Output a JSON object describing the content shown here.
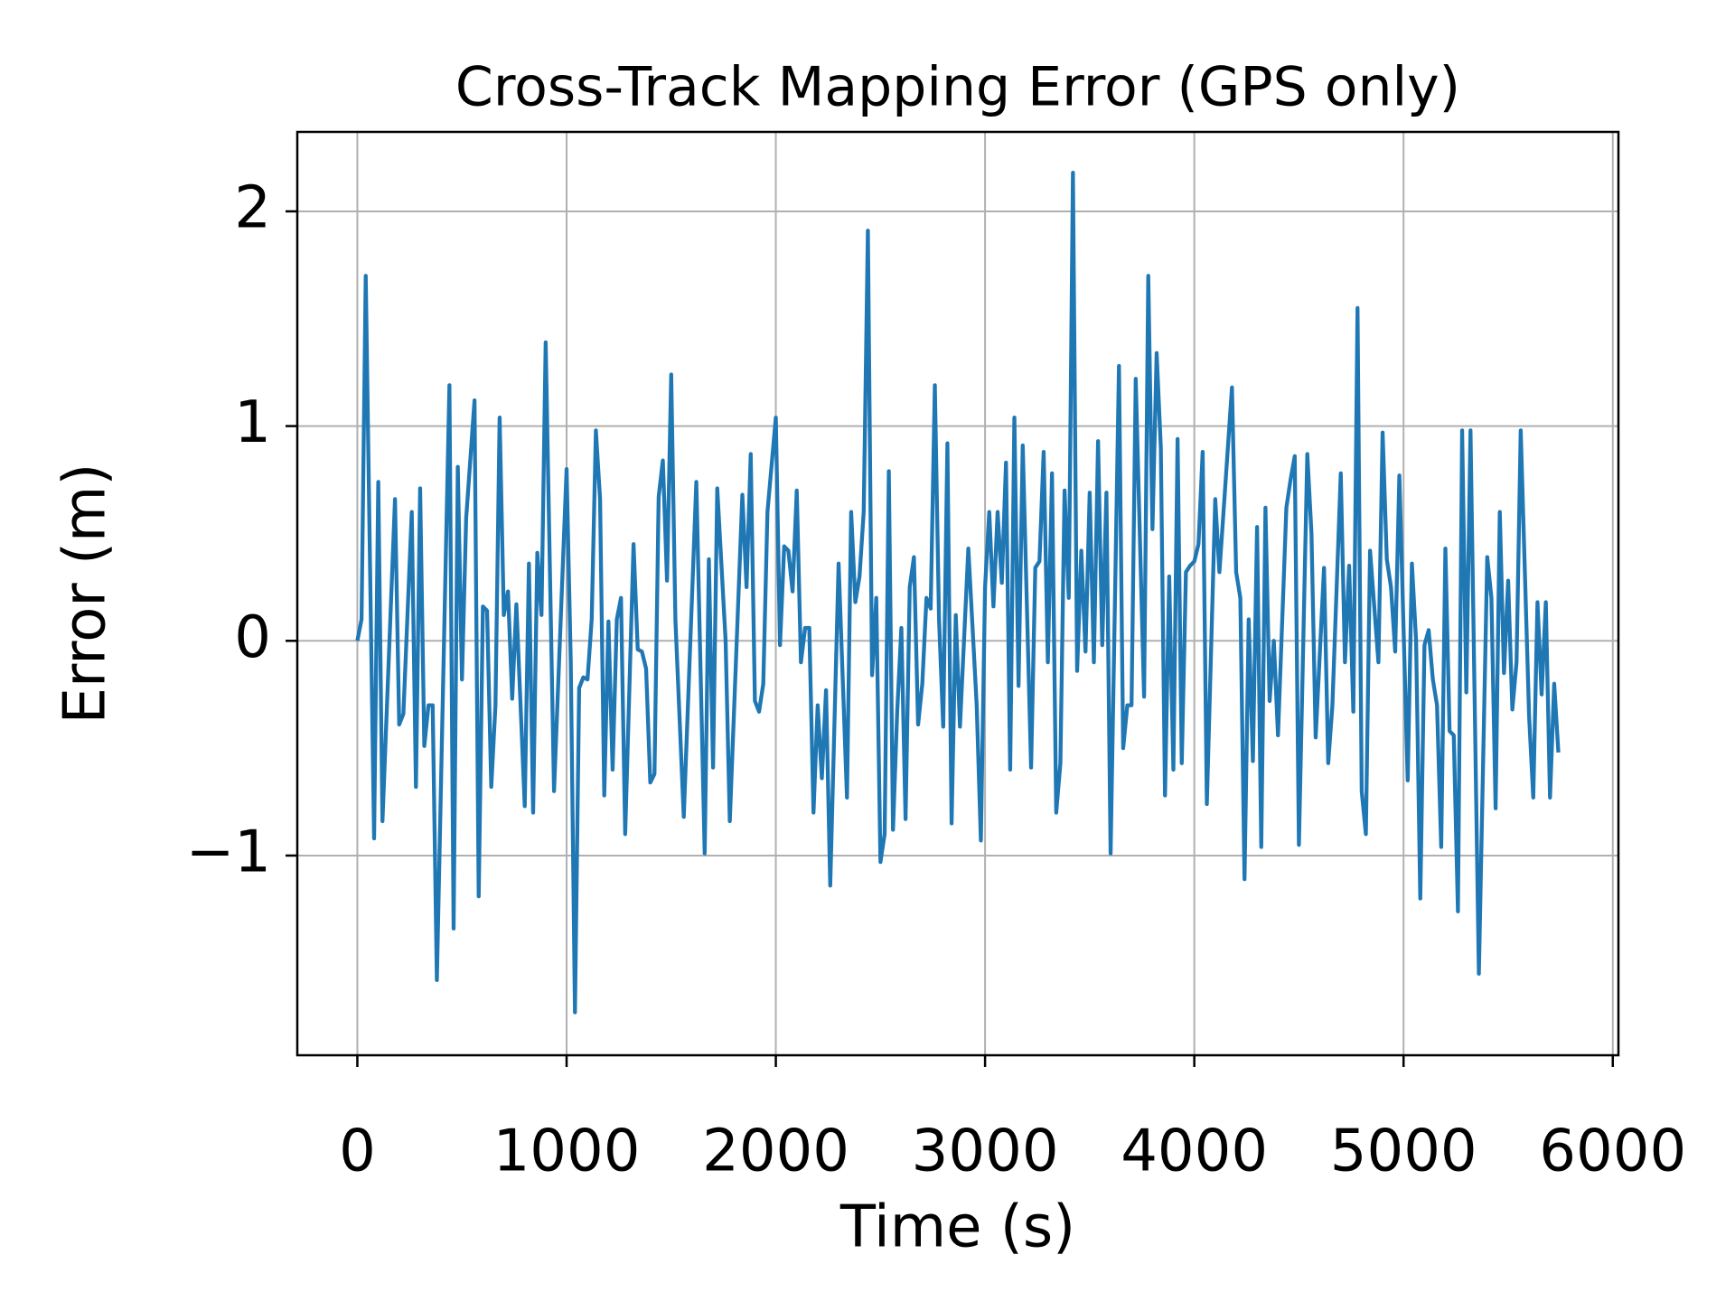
{
  "chart_data": {
    "type": "line",
    "title": "Cross-Track Mapping Error (GPS only)",
    "xlabel": "Time (s)",
    "ylabel": "Error (m)",
    "xlim": [
      -287,
      6027
    ],
    "ylim": [
      -1.93,
      2.37
    ],
    "xticks": [
      0,
      1000,
      2000,
      3000,
      4000,
      5000,
      6000
    ],
    "yticks": [
      {
        "value": -1,
        "label": "−1"
      },
      0,
      1,
      2
    ],
    "grid": true,
    "series": [
      {
        "color": "#1f77b4",
        "x": [
          0,
          20,
          40,
          80,
          100,
          120,
          180,
          200,
          220,
          260,
          280,
          300,
          320,
          340,
          360,
          380,
          440,
          460,
          480,
          500,
          520,
          560,
          580,
          600,
          620,
          640,
          660,
          680,
          700,
          720,
          740,
          760,
          800,
          820,
          840,
          860,
          880,
          900,
          940,
          1000,
          1020,
          1040,
          1060,
          1080,
          1100,
          1120,
          1140,
          1160,
          1180,
          1200,
          1220,
          1240,
          1260,
          1280,
          1320,
          1340,
          1360,
          1380,
          1400,
          1420,
          1440,
          1460,
          1480,
          1500,
          1520,
          1560,
          1620,
          1660,
          1680,
          1700,
          1720,
          1760,
          1780,
          1840,
          1860,
          1880,
          1900,
          1920,
          1940,
          1960,
          2000,
          2020,
          2040,
          2060,
          2080,
          2100,
          2120,
          2140,
          2160,
          2180,
          2200,
          2220,
          2240,
          2260,
          2300,
          2340,
          2360,
          2380,
          2400,
          2420,
          2440,
          2460,
          2480,
          2500,
          2520,
          2540,
          2560,
          2580,
          2600,
          2620,
          2640,
          2660,
          2680,
          2700,
          2720,
          2740,
          2760,
          2780,
          2800,
          2820,
          2840,
          2860,
          2880,
          2920,
          2960,
          2980,
          3000,
          3020,
          3040,
          3060,
          3080,
          3100,
          3120,
          3140,
          3160,
          3180,
          3220,
          3240,
          3260,
          3280,
          3300,
          3320,
          3340,
          3360,
          3380,
          3400,
          3420,
          3440,
          3460,
          3480,
          3500,
          3520,
          3540,
          3560,
          3580,
          3600,
          3640,
          3660,
          3680,
          3700,
          3720,
          3760,
          3780,
          3800,
          3820,
          3840,
          3860,
          3880,
          3900,
          3920,
          3940,
          3960,
          3980,
          4000,
          4020,
          4040,
          4060,
          4100,
          4120,
          4180,
          4200,
          4220,
          4240,
          4260,
          4280,
          4300,
          4320,
          4340,
          4360,
          4380,
          4400,
          4440,
          4460,
          4480,
          4500,
          4540,
          4560,
          4580,
          4620,
          4640,
          4660,
          4700,
          4720,
          4740,
          4760,
          4780,
          4800,
          4820,
          4840,
          4880,
          4900,
          4920,
          4940,
          4960,
          4980,
          5020,
          5040,
          5060,
          5080,
          5100,
          5120,
          5140,
          5160,
          5180,
          5200,
          5220,
          5240,
          5260,
          5280,
          5300,
          5320,
          5360,
          5400,
          5420,
          5440,
          5460,
          5480,
          5500,
          5520,
          5540,
          5560,
          5600,
          5620,
          5640,
          5660,
          5680,
          5700,
          5720,
          5740
        ],
        "values": [
          0,
          0.1,
          1.7,
          -0.92,
          0.74,
          -0.84,
          0.66,
          -0.39,
          -0.34,
          0.6,
          -0.68,
          0.71,
          -0.49,
          -0.3,
          -0.3,
          -1.58,
          1.19,
          -1.34,
          0.81,
          -0.18,
          0.57,
          1.12,
          -1.19,
          0.16,
          0.14,
          -0.68,
          -0.3,
          1.04,
          0.12,
          0.23,
          -0.27,
          0.17,
          -0.77,
          0.36,
          -0.8,
          0.41,
          0.12,
          1.39,
          -0.7,
          0.8,
          -0.1,
          -1.73,
          -0.22,
          -0.17,
          -0.18,
          0.1,
          0.98,
          0.66,
          -0.72,
          0.09,
          -0.6,
          0.1,
          0.2,
          -0.9,
          0.45,
          -0.04,
          -0.05,
          -0.13,
          -0.66,
          -0.62,
          0.67,
          0.84,
          0.28,
          1.24,
          0.1,
          -0.82,
          0.74,
          -0.99,
          0.38,
          -0.59,
          0.71,
          0,
          -0.84,
          0.68,
          0.25,
          0.87,
          -0.28,
          -0.33,
          -0.2,
          0.6,
          1.04,
          -0.02,
          0.44,
          0.42,
          0.23,
          0.7,
          -0.1,
          0.06,
          0.06,
          -0.8,
          -0.3,
          -0.64,
          -0.23,
          -1.14,
          0.36,
          -0.73,
          0.6,
          0.18,
          0.3,
          0.6,
          1.91,
          -0.16,
          0.2,
          -1.03,
          -0.9,
          0.79,
          -0.88,
          -0.33,
          0.06,
          -0.83,
          0.25,
          0.39,
          -0.39,
          -0.2,
          0.2,
          0.15,
          1.19,
          0.1,
          -0.4,
          0.92,
          -0.85,
          0.12,
          -0.4,
          0.43,
          -0.3,
          -0.93,
          0.25,
          0.6,
          0.16,
          0.6,
          0.27,
          0.83,
          -0.6,
          1.04,
          -0.21,
          0.91,
          -0.59,
          0.34,
          0.37,
          0.88,
          -0.1,
          0.78,
          -0.8,
          -0.57,
          0.7,
          0.2,
          2.18,
          -0.14,
          0.42,
          -0.05,
          0.69,
          -0.1,
          0.93,
          -0.02,
          0.69,
          -0.99,
          1.28,
          -0.5,
          -0.3,
          -0.3,
          1.22,
          -0.26,
          1.7,
          0.52,
          1.34,
          0.9,
          -0.72,
          0.3,
          -0.6,
          0.94,
          -0.57,
          0.32,
          0.35,
          0.37,
          0.45,
          0.88,
          -0.76,
          0.66,
          0.32,
          1.18,
          0.32,
          0.2,
          -1.11,
          0.1,
          -0.56,
          0.53,
          -0.96,
          0.62,
          -0.28,
          0,
          -0.44,
          0.62,
          0.75,
          0.86,
          -0.95,
          0.87,
          0.5,
          -0.45,
          0.34,
          -0.57,
          -0.3,
          0.78,
          -0.1,
          0.35,
          -0.33,
          1.55,
          -0.7,
          -0.9,
          0.42,
          -0.1,
          0.97,
          0.38,
          0.25,
          -0.05,
          0.77,
          -0.65,
          0.36,
          0,
          -1.2,
          -0.02,
          0.05,
          -0.18,
          -0.3,
          -0.96,
          0.43,
          -0.42,
          -0.44,
          -1.26,
          0.98,
          -0.24,
          0.98,
          -1.55,
          0.39,
          0.2,
          -0.78,
          0.6,
          -0.15,
          0.28,
          -0.32,
          -0.1,
          0.98,
          -0.35,
          -0.73,
          0.18,
          -0.25,
          0.18,
          -0.73,
          -0.2,
          -0.52
        ]
      }
    ]
  }
}
